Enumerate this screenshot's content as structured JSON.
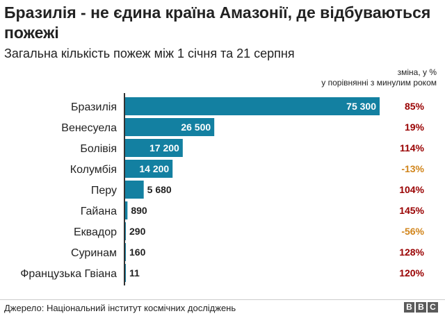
{
  "chart_data": {
    "type": "bar",
    "orientation": "horizontal",
    "title": "Бразилія - не єдина країна Амазонії, де відбуваються пожежі",
    "subtitle": "Загальна кількість пожеж між 1 січня та 21 серпня",
    "change_header": [
      "зміна, у %",
      "у порівнянні з минулим роком"
    ],
    "categories": [
      "Бразилія",
      "Венесуела",
      "Болівія",
      "Колумбія",
      "Перу",
      "Гайана",
      "Еквадор",
      "Суринам",
      "Французька Гвіана"
    ],
    "values": [
      75300,
      26500,
      17200,
      14200,
      5680,
      890,
      290,
      160,
      11
    ],
    "value_labels": [
      "75 300",
      "26 500",
      "17 200",
      "14 200",
      "5 680",
      "890",
      "290",
      "160",
      "11"
    ],
    "changes": [
      "85%",
      "19%",
      "114%",
      "-13%",
      "104%",
      "145%",
      "-56%",
      "128%",
      "120%"
    ],
    "xlim": [
      0,
      75300
    ],
    "grid": false,
    "colors": {
      "bar": "#1380A1",
      "positive_change": "#990000",
      "negative_change": "#D1851B",
      "label_inside": "#ffffff",
      "label_outside": "#222222"
    }
  },
  "footer": {
    "source": "Джерело: Національний інститут космічних досліджень",
    "logo": [
      "B",
      "B",
      "C"
    ]
  }
}
